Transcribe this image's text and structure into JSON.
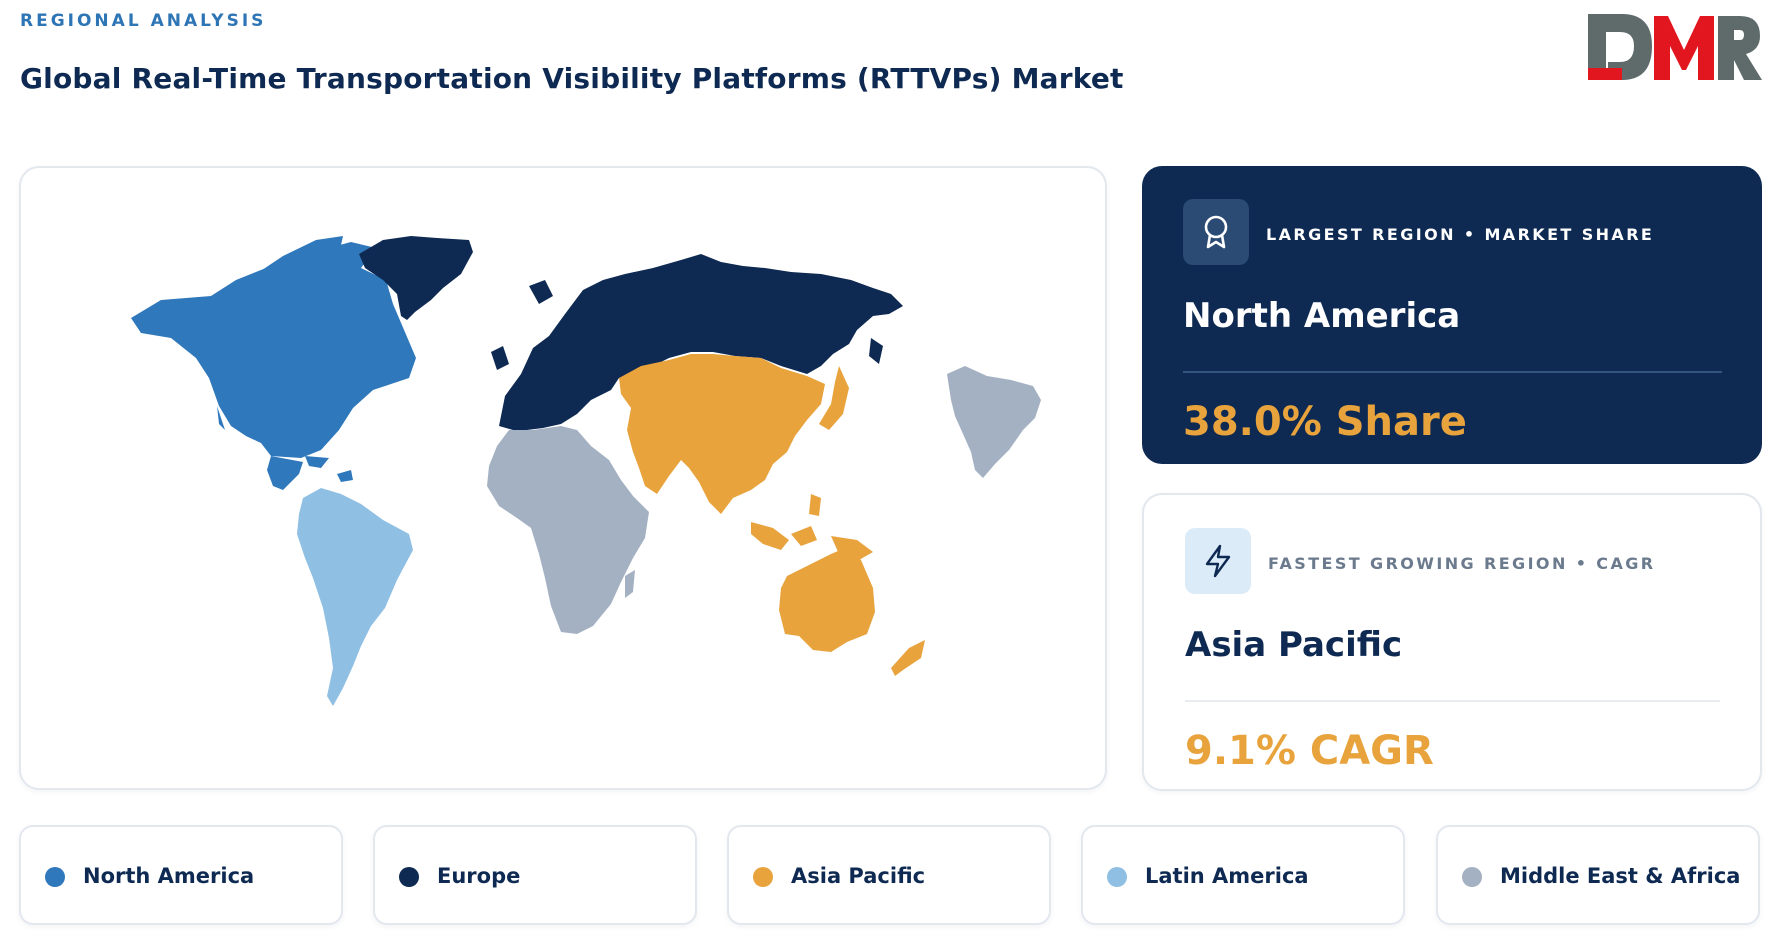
{
  "header": {
    "kicker": "REGIONAL ANALYSIS",
    "title": "Global Real-Time Transportation Visibility Platforms (RTTVPs) Market"
  },
  "logo": {
    "text": "DMR",
    "colors": {
      "accent": "#e1161f",
      "gray": "#5e6b6a"
    }
  },
  "map": {
    "regions": [
      {
        "name": "North America",
        "color": "#2f78bc"
      },
      {
        "name": "Europe",
        "color": "#0e2a52"
      },
      {
        "name": "Asia Pacific",
        "color": "#e8a33d"
      },
      {
        "name": "Latin America",
        "color": "#8fbfe3"
      },
      {
        "name": "Middle East & Africa",
        "color": "#a4b1c2"
      }
    ]
  },
  "largest": {
    "icon": "award-ribbon-icon",
    "label": "LARGEST REGION • MARKET SHARE",
    "region": "North America",
    "value": "38.0% Share"
  },
  "fastest": {
    "icon": "lightning-bolt-icon",
    "label": "FASTEST GROWING REGION • CAGR",
    "region": "Asia Pacific",
    "value": "9.1% CAGR"
  },
  "legend": [
    {
      "label": "North America",
      "color": "#2f78bc"
    },
    {
      "label": "Europe",
      "color": "#0e2a52"
    },
    {
      "label": "Asia Pacific",
      "color": "#e8a33d"
    },
    {
      "label": "Latin America",
      "color": "#8fbfe3"
    },
    {
      "label": "Middle East & Africa",
      "color": "#a4b1c2"
    }
  ]
}
